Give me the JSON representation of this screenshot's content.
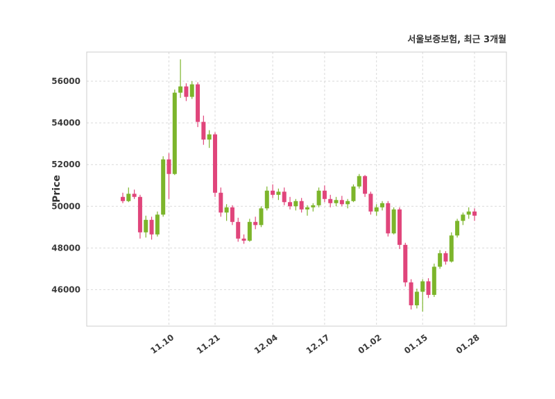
{
  "chart_data": {
    "type": "candlestick",
    "title": "서울보증보험, 최근 3개월",
    "ylabel": "Price",
    "xlabel": "",
    "ylim": [
      44250,
      57400
    ],
    "yticks": [
      46000,
      48000,
      50000,
      52000,
      54000,
      56000
    ],
    "xtick_labels": [
      "11.10",
      "11.21",
      "12.04",
      "12.17",
      "01.02",
      "01.15",
      "01.28"
    ],
    "xtick_indices": [
      8,
      16,
      26,
      35,
      44,
      52,
      61
    ],
    "grid": true,
    "legend": "none",
    "colors": {
      "up": "#7cb52b",
      "down": "#e0457b",
      "grid": "#d9d9d9",
      "spine": "#cccccc",
      "tick_text": "#3a3a3a",
      "title_text": "#333333",
      "background": "#ffffff"
    },
    "candles": [
      [
        50450,
        50650,
        50150,
        50250
      ],
      [
        50250,
        50900,
        50200,
        50600
      ],
      [
        50600,
        50800,
        50350,
        50450
      ],
      [
        50450,
        50550,
        48450,
        48750
      ],
      [
        48750,
        49550,
        48500,
        49350
      ],
      [
        49350,
        49500,
        48400,
        48650
      ],
      [
        48650,
        49750,
        48550,
        49600
      ],
      [
        49600,
        52400,
        49500,
        52250
      ],
      [
        52250,
        52550,
        50350,
        51550
      ],
      [
        51550,
        55600,
        51500,
        55450
      ],
      [
        55450,
        57050,
        55200,
        55750
      ],
      [
        55750,
        55900,
        55050,
        55250
      ],
      [
        55250,
        56000,
        55150,
        55850
      ],
      [
        55850,
        55950,
        53800,
        54050
      ],
      [
        54050,
        54350,
        52950,
        53200
      ],
      [
        53200,
        53650,
        52800,
        53450
      ],
      [
        53450,
        53550,
        50450,
        50650
      ],
      [
        50650,
        50900,
        49500,
        49700
      ],
      [
        49700,
        50100,
        49300,
        49950
      ],
      [
        49950,
        50050,
        49100,
        49250
      ],
      [
        49250,
        49450,
        48300,
        48450
      ],
      [
        48450,
        48650,
        48200,
        48350
      ],
      [
        48350,
        49400,
        48300,
        49250
      ],
      [
        49250,
        49500,
        48900,
        49100
      ],
      [
        49100,
        50000,
        49000,
        49900
      ],
      [
        49900,
        50950,
        49800,
        50750
      ],
      [
        50750,
        51050,
        50400,
        50550
      ],
      [
        50550,
        50850,
        50300,
        50700
      ],
      [
        50700,
        50900,
        50050,
        50200
      ],
      [
        50200,
        50450,
        49850,
        50000
      ],
      [
        50000,
        50350,
        49800,
        50250
      ],
      [
        50250,
        50400,
        49700,
        49850
      ],
      [
        49850,
        50050,
        49550,
        49950
      ],
      [
        49950,
        50150,
        49750,
        50050
      ],
      [
        50050,
        50900,
        49950,
        50750
      ],
      [
        50750,
        51000,
        50200,
        50350
      ],
      [
        50350,
        50550,
        49950,
        50150
      ],
      [
        50150,
        50450,
        50000,
        50300
      ],
      [
        50300,
        50500,
        50000,
        50100
      ],
      [
        50100,
        50350,
        49900,
        50250
      ],
      [
        50250,
        51050,
        50200,
        50950
      ],
      [
        50950,
        51550,
        50850,
        51450
      ],
      [
        51450,
        51500,
        50450,
        50600
      ],
      [
        50600,
        50700,
        49600,
        49750
      ],
      [
        49750,
        50100,
        49550,
        49950
      ],
      [
        49950,
        50250,
        49800,
        50150
      ],
      [
        50150,
        50250,
        48550,
        48700
      ],
      [
        48700,
        49950,
        48650,
        49850
      ],
      [
        49850,
        49950,
        47950,
        48150
      ],
      [
        48150,
        48250,
        46150,
        46350
      ],
      [
        46350,
        46500,
        45050,
        45250
      ],
      [
        45250,
        46050,
        45100,
        45900
      ],
      [
        45900,
        46500,
        44950,
        46400
      ],
      [
        46400,
        46550,
        45600,
        45750
      ],
      [
        45750,
        47250,
        45650,
        47100
      ],
      [
        47100,
        47900,
        47000,
        47750
      ],
      [
        47750,
        47850,
        47200,
        47350
      ],
      [
        47350,
        48750,
        47300,
        48600
      ],
      [
        48600,
        49400,
        48500,
        49300
      ],
      [
        49300,
        49700,
        49100,
        49600
      ],
      [
        49600,
        49950,
        49400,
        49750
      ],
      [
        49750,
        49900,
        49300,
        49550
      ]
    ]
  }
}
